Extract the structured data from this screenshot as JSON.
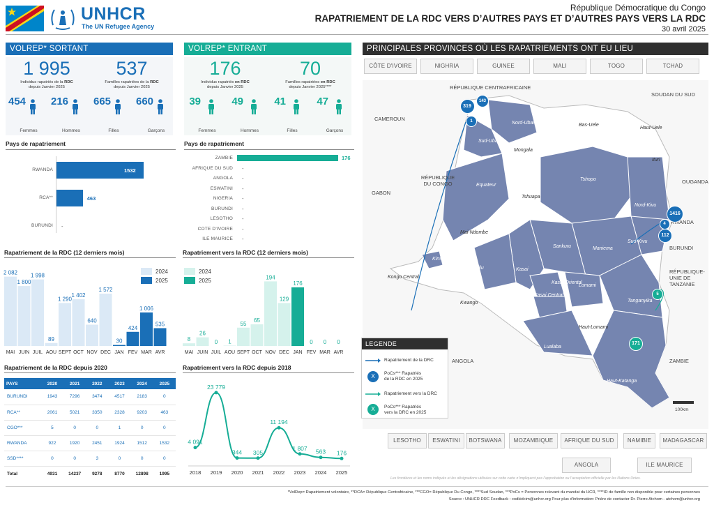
{
  "header": {
    "org": "UNHCR",
    "org_sub": "The UN Refugee Agency",
    "country": "République Démocratique du Congo",
    "title": "RAPATRIEMENT DE LA RDC VERS D’AUTRES PAYS ET D’AUTRES PAYS VERS LA RDC",
    "date": "30 avril 2025"
  },
  "sortant": {
    "title": "VOLREP* SORTANT",
    "individus": "1 995",
    "individus_cap1": "Individus rapatriés de la",
    "individus_cap_b": "RDC",
    "individus_cap2": "depuis Janvier 2025",
    "familles": "537",
    "familles_cap1": "Familles rapatriées de la",
    "familles_cap_b": "RDC",
    "familles_cap2": "depuis Janvier 2025",
    "femmes": "454",
    "hommes": "216",
    "filles": "665",
    "garcons": "660"
  },
  "entrant": {
    "title": "VOLREP* ENTRANT",
    "individus": "176",
    "individus_cap1": "Individus rapatriés",
    "individus_cap_b": "en RDC",
    "individus_cap2": "depuis Janvier 2025",
    "familles": "70",
    "familles_cap1": "Familles rapatriées",
    "familles_cap_b": "en RDC",
    "familles_cap2": "depuis Janvier 2025****",
    "femmes": "39",
    "hommes": "49",
    "filles": "41",
    "garcons": "47"
  },
  "labels": {
    "femmes": "Femmes",
    "hommes": "Hommes",
    "filles": "Filles",
    "garcons": "Garçons",
    "pays": "Pays de rapatriement",
    "rep_rdc_12": "Rapatriement de la RDC (12 derniers mois)",
    "rep_vers_12": "Rapatriement vers la RDC (12 derniers mois)",
    "rep_rdc_2020": "Rapatriement de la RDC depuis 2020",
    "rep_vers_2018": "Rapatriement vers la RDC depuis 2018"
  },
  "pays_sortant": [
    {
      "name": "RWANDA",
      "value": 1532
    },
    {
      "name": "RCA**",
      "value": 463
    },
    {
      "name": "BURUNDI",
      "value": "-"
    }
  ],
  "pays_entrant": [
    {
      "name": "ZAMBIE",
      "value": 176
    },
    {
      "name": "AFRIQUE DU SUD",
      "value": "-"
    },
    {
      "name": "ANGOLA",
      "value": "-"
    },
    {
      "name": "ESWATINI",
      "value": "-"
    },
    {
      "name": "NIGERIA",
      "value": "-"
    },
    {
      "name": "BURUNDI",
      "value": "-"
    },
    {
      "name": "LESOTHO",
      "value": "-"
    },
    {
      "name": "COTE D'IVOIRE",
      "value": "-"
    },
    {
      "name": "ILE MAURICE",
      "value": "-"
    }
  ],
  "chart_data": [
    {
      "type": "bar",
      "title": "Rapatriement de la RDC (12 derniers mois)",
      "categories": [
        "MAI",
        "JUIN",
        "JUIL",
        "AOU",
        "SEPT",
        "OCT",
        "NOV",
        "DEC",
        "JAN",
        "FEV",
        "MAR",
        "AVR"
      ],
      "series": [
        {
          "name": "2024",
          "values": [
            2082,
            1800,
            1998,
            89,
            1290,
            1402,
            640,
            1572,
            null,
            null,
            null,
            null
          ]
        },
        {
          "name": "2025",
          "values": [
            null,
            null,
            null,
            null,
            null,
            null,
            null,
            null,
            30,
            424,
            1006,
            535
          ]
        }
      ],
      "labels": [
        "2 082",
        "1 800",
        "1 998",
        "89",
        "1 290",
        "1 402",
        "640",
        "1 572",
        "30",
        "424",
        "1 006",
        "535"
      ],
      "ylim": [
        0,
        2200
      ],
      "legend": "top-right"
    },
    {
      "type": "bar",
      "title": "Rapatriement vers la RDC (12 derniers mois)",
      "categories": [
        "MAI",
        "JUIN",
        "JUIL",
        "AOU",
        "SEPT",
        "OCT",
        "NOV",
        "DEC",
        "JAN",
        "FEV",
        "MAR",
        "AVR"
      ],
      "series": [
        {
          "name": "2024",
          "values": [
            8,
            26,
            0,
            1,
            55,
            65,
            194,
            129,
            null,
            null,
            null,
            null
          ]
        },
        {
          "name": "2025",
          "values": [
            null,
            null,
            null,
            null,
            null,
            null,
            null,
            null,
            176,
            0,
            0,
            0
          ]
        }
      ],
      "labels": [
        "8",
        "26",
        "0",
        "1",
        "55",
        "65",
        "194",
        "129",
        "176",
        "0",
        "0",
        "0"
      ],
      "ylim": [
        0,
        220
      ],
      "legend": "top-left"
    },
    {
      "type": "line",
      "title": "Rapatriement vers la RDC depuis 2018",
      "x": [
        "2018",
        "2019",
        "2020",
        "2021",
        "2022",
        "2023",
        "2024",
        "2025"
      ],
      "values": [
        4091,
        23779,
        344,
        305,
        11194,
        1807,
        563,
        176
      ],
      "labels": [
        "4 091",
        "23 779",
        "344",
        "305",
        "11 194",
        "1 807",
        "563",
        "176"
      ],
      "ylim": [
        0,
        25000
      ]
    },
    {
      "type": "table",
      "title": "Rapatriement de la RDC depuis 2020",
      "columns": [
        "PAYS",
        "2020",
        "2021",
        "2022",
        "2023",
        "2024",
        "2025"
      ],
      "rows": [
        [
          "BURUNDI",
          "1943",
          "7296",
          "3474",
          "4517",
          "2183",
          "0"
        ],
        [
          "RCA**",
          "2061",
          "5021",
          "3350",
          "2328",
          "9203",
          "463"
        ],
        [
          "CGO***",
          "5",
          "0",
          "0",
          "1",
          "0",
          "0"
        ],
        [
          "RWANDA",
          "922",
          "1920",
          "2451",
          "1924",
          "1512",
          "1532"
        ],
        [
          "SSD****",
          "0",
          "0",
          "3",
          "0",
          "0",
          "0"
        ],
        [
          "Total",
          "4931",
          "14237",
          "9278",
          "8770",
          "12898",
          "1995"
        ]
      ]
    }
  ],
  "map": {
    "title": "PRINCIPALES PROVINCES OÙ LES RAPATRIEMENTS ONT EU LIEU",
    "top_countries": [
      "CÔTE D'IVOIRE",
      "NIGHRIA",
      "GUINEE",
      "MALI",
      "TOGO",
      "TCHAD"
    ],
    "bottom_countries": [
      "LESOTHO",
      "ESWATINI",
      "BOTSWANA",
      "MOZAMBIQUE",
      "AFRIQUE DU SUD",
      "NAMIBIE",
      "MADAGASCAR"
    ],
    "bottom_countries2": [
      "ANGOLA",
      "ILE MAURICE"
    ],
    "neighbors": [
      "RÉPUBLIQUE CENTRAFRICAINE",
      "SOUDAN DU SUD",
      "CAMEROUN",
      "RÉPUBLIQUE DU CONGO",
      "GABON",
      "OUGANDA",
      "RWANDA",
      "BURUNDI",
      "RÉPUBLIQUE-UNIE DE TANZANIE",
      "ANGOLA",
      "ZAMBIE"
    ],
    "provinces_hl": [
      "Nord-Ubangi",
      "Sud-Ubangi",
      "Equateur",
      "Tshopo",
      "Nord-Kivu",
      "Sud-Kivu",
      "Maniema",
      "Sankuru",
      "Kasai",
      "Kwilu",
      "Kasai Oriental",
      "Kasai Central",
      "Lomami",
      "Tanganyika",
      "Lualaba",
      "Haut-Katanga",
      "Kinshasa"
    ],
    "provinces": [
      "Bas-Uele",
      "Haut-Uele",
      "Ituri",
      "Mongala",
      "Tshuapa",
      "Mai-Ndombe",
      "Kongo Central",
      "Kwango",
      "Haut-Lomami"
    ],
    "bubbles": [
      {
        "label": "319"
      },
      {
        "label": "143"
      },
      {
        "label": "1"
      },
      {
        "label": "1416"
      },
      {
        "label": "4"
      },
      {
        "label": "112"
      },
      {
        "label": "5"
      },
      {
        "label": "171"
      }
    ],
    "scale": "100km",
    "disclaimer": "Les frontières et les noms indiqués et les désignations utilisées sur cette carte n’impliquent pas l’approbation ou l’acceptation officielle par les Nations Unies."
  },
  "legend": {
    "title": "LEGENDE",
    "item1": "Rapatriement de la DRC",
    "item2a": "PoCs*** Rapatriés",
    "item2b": "de la RDC en 2025",
    "item3": "Rapatriement vers la DRC",
    "item4a": "PoCs*** Rapatriés",
    "item4b": "vers la DRC en 2025",
    "sym": "X"
  },
  "footer": {
    "line1": "*VolRep= Rapatriement volontaire, **RCA= République Centrafricaine, ***CGO= République Du Congo, ****Sud Soudan, ***PoCs = Personnes relevant du mandat du HCR, ****ID de famille non disponible pour certaines personnes",
    "line2": "Source : UNHCR DRC Feedback : codkidcim@unhcr.org     Pour plus d'information: Prière de contacter Dr. Pierre Atchom - atchom@unhcr.org"
  },
  "colors": {
    "blue": "#1a6fb7",
    "teal": "#16ad96",
    "light_blue": "#dbe9f6",
    "light_teal": "#d5f2ec",
    "province": "#7585b0"
  }
}
